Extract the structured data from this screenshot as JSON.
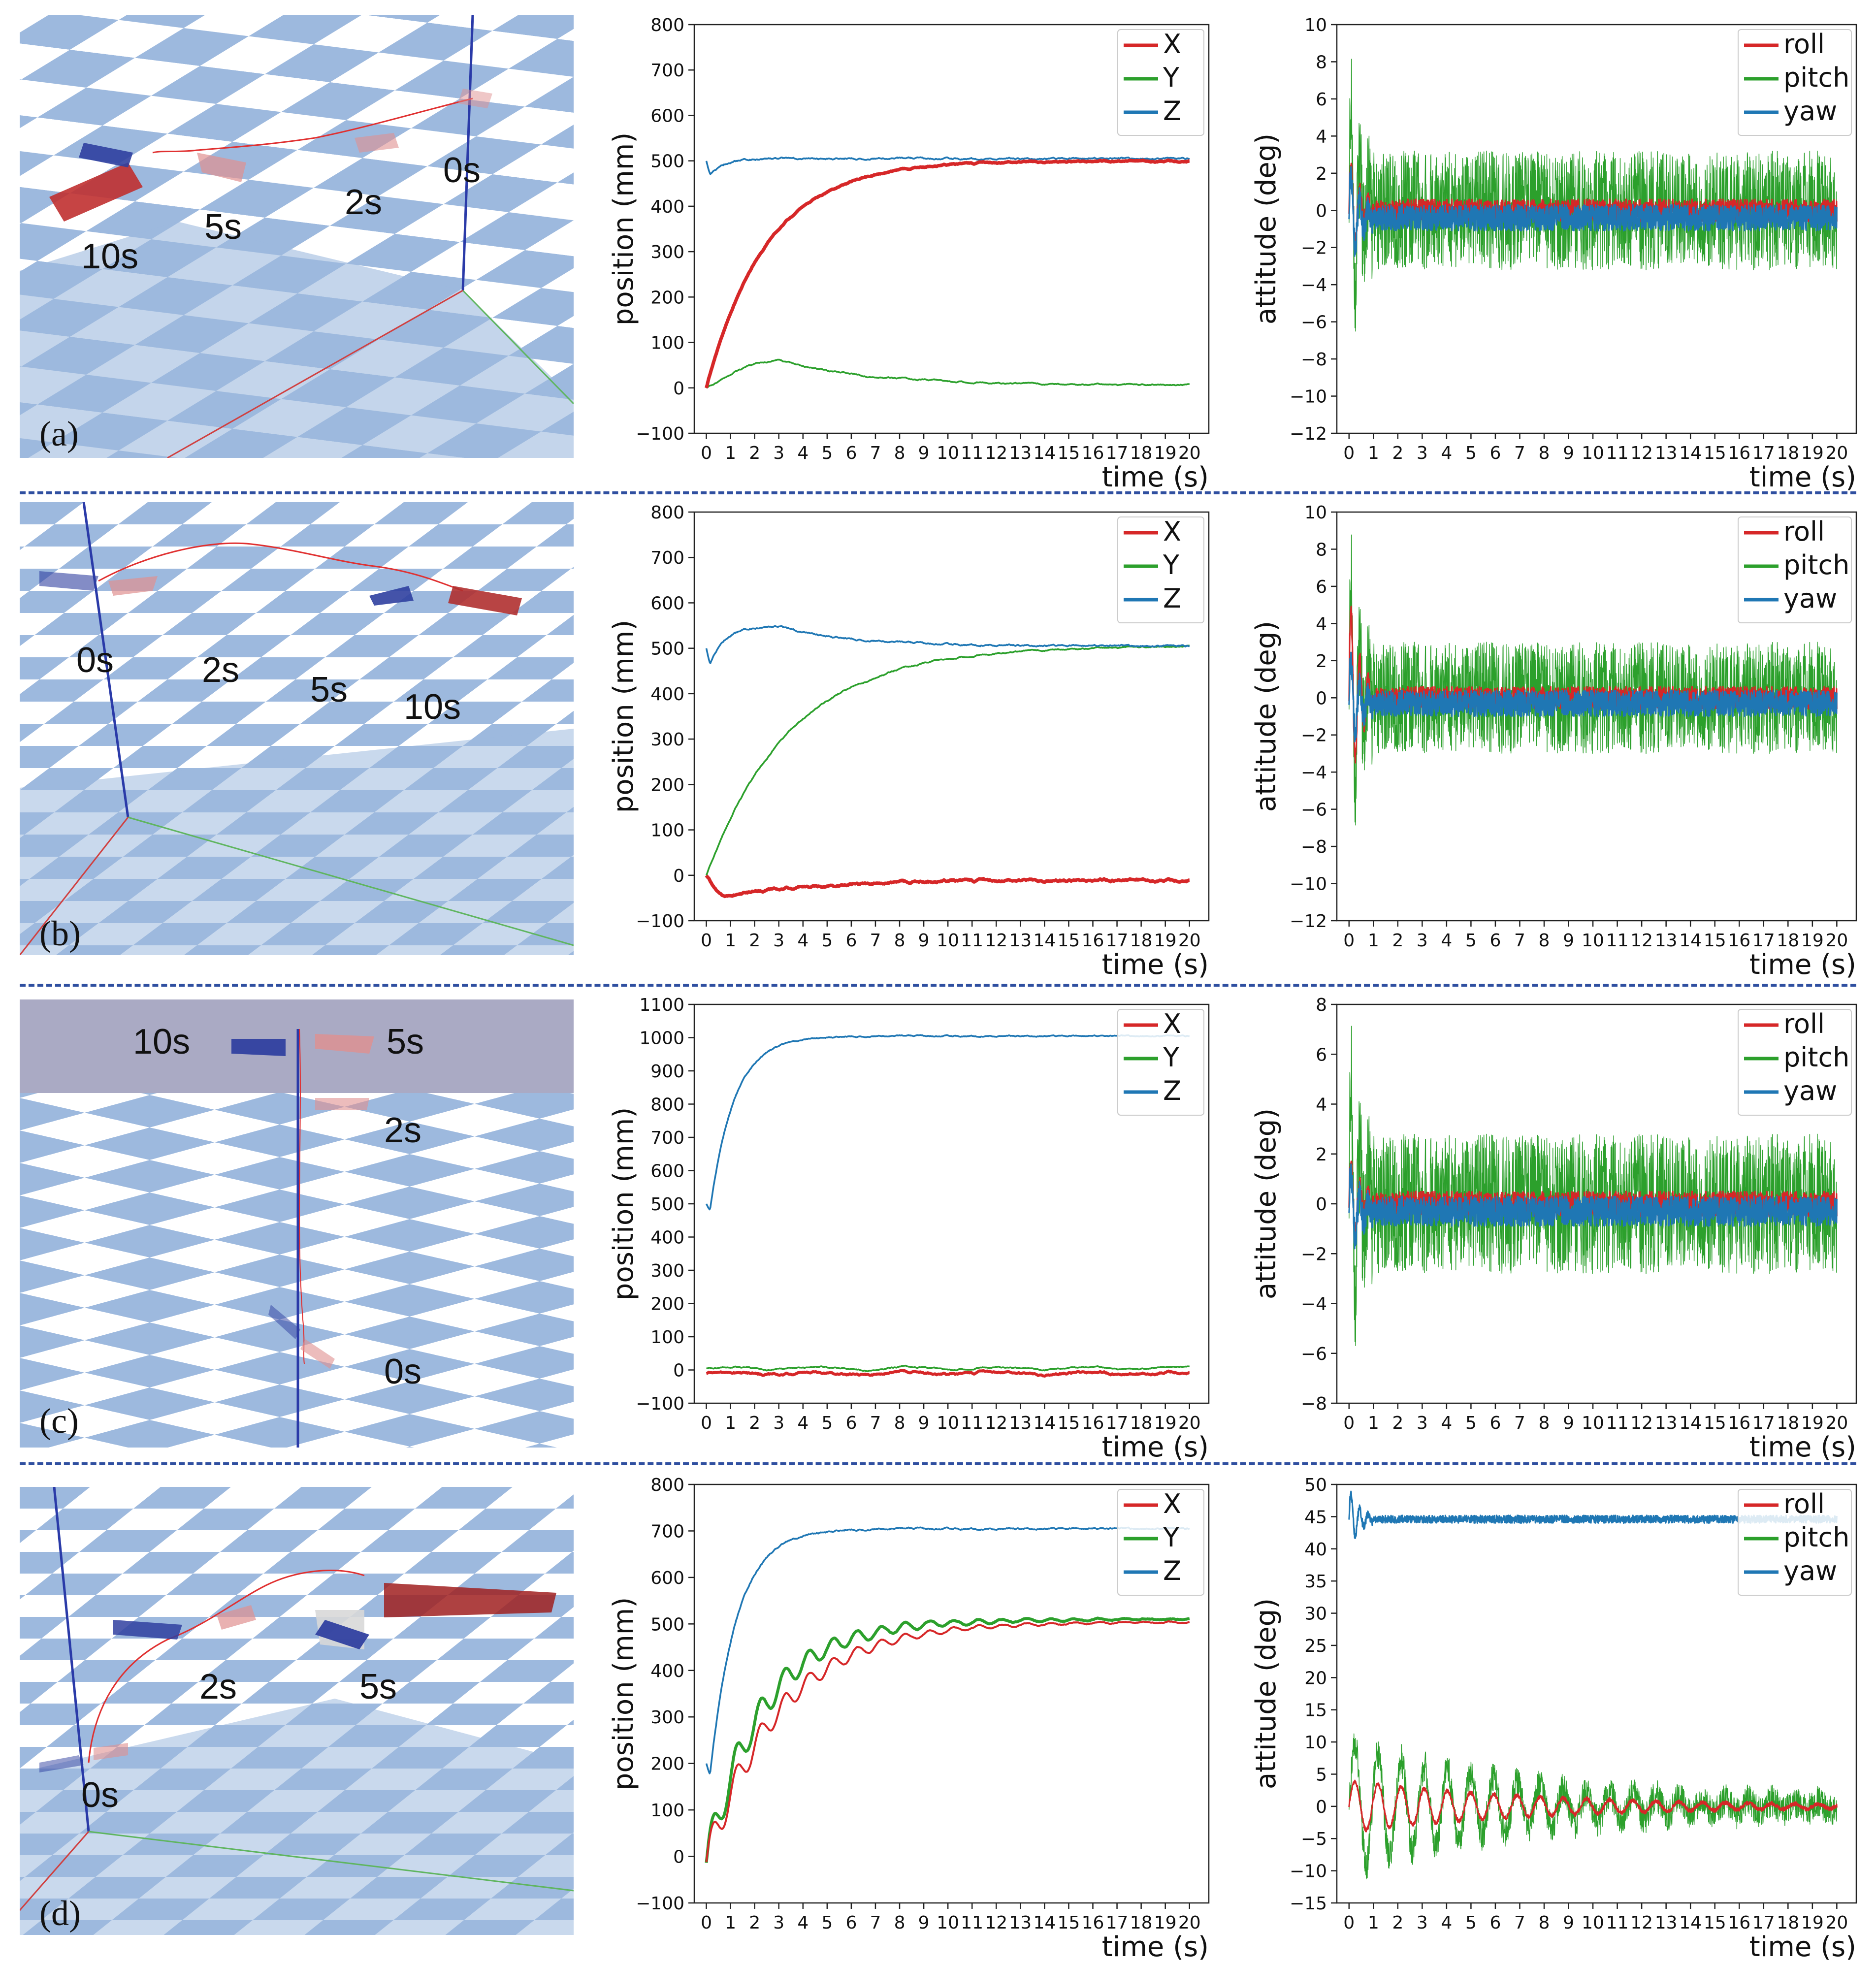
{
  "figure": {
    "rows": [
      {
        "panel_label": "(a)",
        "sim_time_labels": [
          "10s",
          "5s",
          "2s",
          "0s"
        ],
        "sim_label_anchor": "left-row-a"
      },
      {
        "panel_label": "(b)",
        "sim_time_labels": [
          "0s",
          "2s",
          "5s",
          "10s"
        ]
      },
      {
        "panel_label": "(c)",
        "sim_time_labels": [
          "10s",
          "5s",
          "2s",
          "0s"
        ]
      },
      {
        "panel_label": "(d)",
        "sim_time_labels": [
          "2s",
          "5s",
          "0s"
        ]
      }
    ],
    "colors": {
      "red": "#d62728",
      "green": "#2ca02c",
      "blue": "#1f77b4",
      "separator": "#2f4fa0",
      "floor_blue": "#9db9de",
      "sky": "#aaaac4"
    }
  },
  "chart_data": [
    {
      "id": "a-position",
      "type": "line",
      "xlabel": "time (s)",
      "ylabel": "position (mm)",
      "xlim": [
        -0.5,
        20.8
      ],
      "ylim": [
        -100,
        800
      ],
      "xticks": [
        0,
        1,
        2,
        3,
        4,
        5,
        6,
        7,
        8,
        9,
        10,
        11,
        12,
        13,
        14,
        15,
        16,
        17,
        18,
        19,
        20
      ],
      "yticks": [
        -100,
        0,
        100,
        200,
        300,
        400,
        500,
        600,
        700,
        800
      ],
      "ytick_labels": [
        "−100",
        "0",
        "100",
        "200",
        "300",
        "400",
        "500",
        "600",
        "700",
        "800"
      ],
      "legend": "top-right",
      "series": [
        {
          "name": "X",
          "color": "#d62728",
          "width": 7,
          "model": "rise",
          "start": 0,
          "target": 500,
          "tau": 2.5,
          "osc": 0,
          "noise": 3
        },
        {
          "name": "Y",
          "color": "#2ca02c",
          "width": 3.5,
          "model": "hump",
          "start": 0,
          "peak": 60,
          "peak_t": 3,
          "end": 5,
          "noise": 3
        },
        {
          "name": "Z",
          "color": "#1f77b4",
          "width": 3.5,
          "model": "dip",
          "base": 500,
          "dip": 470,
          "rise_to": 505,
          "noise": 4
        }
      ]
    },
    {
      "id": "a-attitude",
      "type": "line",
      "xlabel": "time (s)",
      "ylabel": "attitude (deg)",
      "xlim": [
        -0.5,
        20.8
      ],
      "ylim": [
        -12,
        10
      ],
      "xticks": [
        0,
        1,
        2,
        3,
        4,
        5,
        6,
        7,
        8,
        9,
        10,
        11,
        12,
        13,
        14,
        15,
        16,
        17,
        18,
        19,
        20
      ],
      "yticks": [
        -12,
        -10,
        -8,
        -6,
        -4,
        -2,
        0,
        2,
        4,
        6,
        8,
        10
      ],
      "ytick_labels": [
        "−12",
        "−10",
        "−8",
        "−6",
        "−4",
        "−2",
        "0",
        "2",
        "4",
        "6",
        "8",
        "10"
      ],
      "legend": "top-right",
      "series": [
        {
          "name": "roll",
          "color": "#d62728",
          "width": 3,
          "model": "noise",
          "base": 0,
          "amp": 0.6,
          "transient": 3
        },
        {
          "name": "pitch",
          "color": "#2ca02c",
          "width": 1.5,
          "model": "noise",
          "base": 0,
          "amp": 3.2,
          "transient": 8
        },
        {
          "name": "yaw",
          "color": "#1f77b4",
          "width": 3,
          "model": "noise",
          "base": -0.4,
          "amp": 0.7,
          "transient": 3
        }
      ]
    },
    {
      "id": "b-position",
      "type": "line",
      "xlabel": "time (s)",
      "ylabel": "position (mm)",
      "xlim": [
        -0.5,
        20.8
      ],
      "ylim": [
        -100,
        800
      ],
      "xticks": [
        0,
        1,
        2,
        3,
        4,
        5,
        6,
        7,
        8,
        9,
        10,
        11,
        12,
        13,
        14,
        15,
        16,
        17,
        18,
        19,
        20
      ],
      "yticks": [
        -100,
        0,
        100,
        200,
        300,
        400,
        500,
        600,
        700,
        800
      ],
      "ytick_labels": [
        "−100",
        "0",
        "100",
        "200",
        "300",
        "400",
        "500",
        "600",
        "700",
        "800"
      ],
      "legend": "top-right",
      "series": [
        {
          "name": "X",
          "color": "#d62728",
          "width": 7,
          "model": "hump",
          "start": 0,
          "peak": -45,
          "peak_t": 0.8,
          "end": -10,
          "noise": 5
        },
        {
          "name": "Y",
          "color": "#2ca02c",
          "width": 3.5,
          "model": "rise",
          "start": 0,
          "target": 505,
          "tau": 3.5,
          "osc": 0,
          "noise": 3
        },
        {
          "name": "Z",
          "color": "#1f77b4",
          "width": 3.5,
          "model": "dip",
          "base": 500,
          "dip": 465,
          "rise_to": 548,
          "settle": 505,
          "noise": 4
        }
      ]
    },
    {
      "id": "b-attitude",
      "type": "line",
      "xlabel": "time (s)",
      "ylabel": "attitude (deg)",
      "xlim": [
        -0.5,
        20.8
      ],
      "ylim": [
        -12,
        10
      ],
      "xticks": [
        0,
        1,
        2,
        3,
        4,
        5,
        6,
        7,
        8,
        9,
        10,
        11,
        12,
        13,
        14,
        15,
        16,
        17,
        18,
        19,
        20
      ],
      "yticks": [
        -12,
        -10,
        -8,
        -6,
        -4,
        -2,
        0,
        2,
        4,
        6,
        8,
        10
      ],
      "ytick_labels": [
        "−12",
        "−10",
        "−8",
        "−6",
        "−4",
        "−2",
        "0",
        "2",
        "4",
        "6",
        "8",
        "10"
      ],
      "legend": "top-right",
      "series": [
        {
          "name": "roll",
          "color": "#d62728",
          "width": 3,
          "model": "noise",
          "base": 0,
          "amp": 0.6,
          "transient": 6
        },
        {
          "name": "pitch",
          "color": "#2ca02c",
          "width": 1.5,
          "model": "noise",
          "base": 0,
          "amp": 3.0,
          "transient": 9
        },
        {
          "name": "yaw",
          "color": "#1f77b4",
          "width": 3,
          "model": "noise",
          "base": -0.3,
          "amp": 0.7,
          "transient": 3
        }
      ]
    },
    {
      "id": "c-position",
      "type": "line",
      "xlabel": "time (s)",
      "ylabel": "position (mm)",
      "xlim": [
        -0.5,
        20.8
      ],
      "ylim": [
        -100,
        1100
      ],
      "xticks": [
        0,
        1,
        2,
        3,
        4,
        5,
        6,
        7,
        8,
        9,
        10,
        11,
        12,
        13,
        14,
        15,
        16,
        17,
        18,
        19,
        20
      ],
      "yticks": [
        -100,
        0,
        100,
        200,
        300,
        400,
        500,
        600,
        700,
        800,
        900,
        1000,
        1100
      ],
      "ytick_labels": [
        "−100",
        "0",
        "100",
        "200",
        "300",
        "400",
        "500",
        "600",
        "700",
        "800",
        "900",
        "1000",
        "1100"
      ],
      "legend": "top-right",
      "series": [
        {
          "name": "X",
          "color": "#d62728",
          "width": 6,
          "model": "flat",
          "base": -10,
          "noise": 6
        },
        {
          "name": "Y",
          "color": "#2ca02c",
          "width": 3.5,
          "model": "flat",
          "base": 5,
          "noise": 4
        },
        {
          "name": "Z",
          "color": "#1f77b4",
          "width": 3.5,
          "model": "riseFrom",
          "start": 500,
          "dip": 480,
          "target": 1005,
          "tau": 1.0,
          "noise": 4
        }
      ]
    },
    {
      "id": "c-attitude",
      "type": "line",
      "xlabel": "time (s)",
      "ylabel": "attitude (deg)",
      "xlim": [
        -0.5,
        20.8
      ],
      "ylim": [
        -8,
        8
      ],
      "xticks": [
        0,
        1,
        2,
        3,
        4,
        5,
        6,
        7,
        8,
        9,
        10,
        11,
        12,
        13,
        14,
        15,
        16,
        17,
        18,
        19,
        20
      ],
      "yticks": [
        -8,
        -6,
        -4,
        -2,
        0,
        2,
        4,
        6,
        8
      ],
      "ytick_labels": [
        "−8",
        "−6",
        "−4",
        "−2",
        "0",
        "2",
        "4",
        "6",
        "8"
      ],
      "legend": "top-right",
      "series": [
        {
          "name": "roll",
          "color": "#d62728",
          "width": 3,
          "model": "noise",
          "base": 0,
          "amp": 0.5,
          "transient": 2
        },
        {
          "name": "pitch",
          "color": "#2ca02c",
          "width": 1.5,
          "model": "noise",
          "base": 0,
          "amp": 2.8,
          "transient": 7
        },
        {
          "name": "yaw",
          "color": "#1f77b4",
          "width": 3,
          "model": "noise",
          "base": -0.3,
          "amp": 0.6,
          "transient": 2
        }
      ]
    },
    {
      "id": "d-position",
      "type": "line",
      "xlabel": "time (s)",
      "ylabel": "position (mm)",
      "xlim": [
        -0.5,
        20.8
      ],
      "ylim": [
        -100,
        800
      ],
      "xticks": [
        0,
        1,
        2,
        3,
        4,
        5,
        6,
        7,
        8,
        9,
        10,
        11,
        12,
        13,
        14,
        15,
        16,
        17,
        18,
        19,
        20
      ],
      "yticks": [
        -100,
        0,
        100,
        200,
        300,
        400,
        500,
        600,
        700,
        800
      ],
      "ytick_labels": [
        "−100",
        "0",
        "100",
        "200",
        "300",
        "400",
        "500",
        "600",
        "700",
        "800"
      ],
      "legend": "top-right",
      "series": [
        {
          "name": "X",
          "color": "#d62728",
          "width": 4,
          "model": "rise",
          "start": 0,
          "target": 505,
          "tau": 3.0,
          "osc": 40,
          "noise": 2
        },
        {
          "name": "Y",
          "color": "#2ca02c",
          "width": 6,
          "model": "rise",
          "start": 0,
          "target": 510,
          "tau": 2.3,
          "osc": 45,
          "noise": 2
        },
        {
          "name": "Z",
          "color": "#1f77b4",
          "width": 3.5,
          "model": "riseFrom",
          "start": 200,
          "dip": 175,
          "target": 705,
          "tau": 1.1,
          "noise": 4
        }
      ]
    },
    {
      "id": "d-attitude",
      "type": "line",
      "xlabel": "time (s)",
      "ylabel": "attitude (deg)",
      "xlim": [
        -0.5,
        20.8
      ],
      "ylim": [
        -15,
        50
      ],
      "xticks": [
        0,
        1,
        2,
        3,
        4,
        5,
        6,
        7,
        8,
        9,
        10,
        11,
        12,
        13,
        14,
        15,
        16,
        17,
        18,
        19,
        20
      ],
      "yticks": [
        -15,
        -10,
        -5,
        0,
        5,
        10,
        15,
        20,
        25,
        30,
        35,
        40,
        45,
        50
      ],
      "ytick_labels": [
        "−15",
        "−10",
        "−5",
        "0",
        "5",
        "10",
        "15",
        "20",
        "25",
        "30",
        "35",
        "40",
        "45",
        "50"
      ],
      "legend": "top-right",
      "series": [
        {
          "name": "roll",
          "color": "#d62728",
          "width": 3,
          "model": "decayOsc",
          "base": 0,
          "amp": 4,
          "decay": 8,
          "noise": 0.3
        },
        {
          "name": "pitch",
          "color": "#2ca02c",
          "width": 1.5,
          "model": "decayOsc",
          "base": 0,
          "amp": 10,
          "decay": 7,
          "noise": 2.5
        },
        {
          "name": "yaw",
          "color": "#1f77b4",
          "width": 3,
          "model": "noise",
          "base": 44.6,
          "amp": 0.6,
          "transient": 5
        }
      ]
    }
  ]
}
